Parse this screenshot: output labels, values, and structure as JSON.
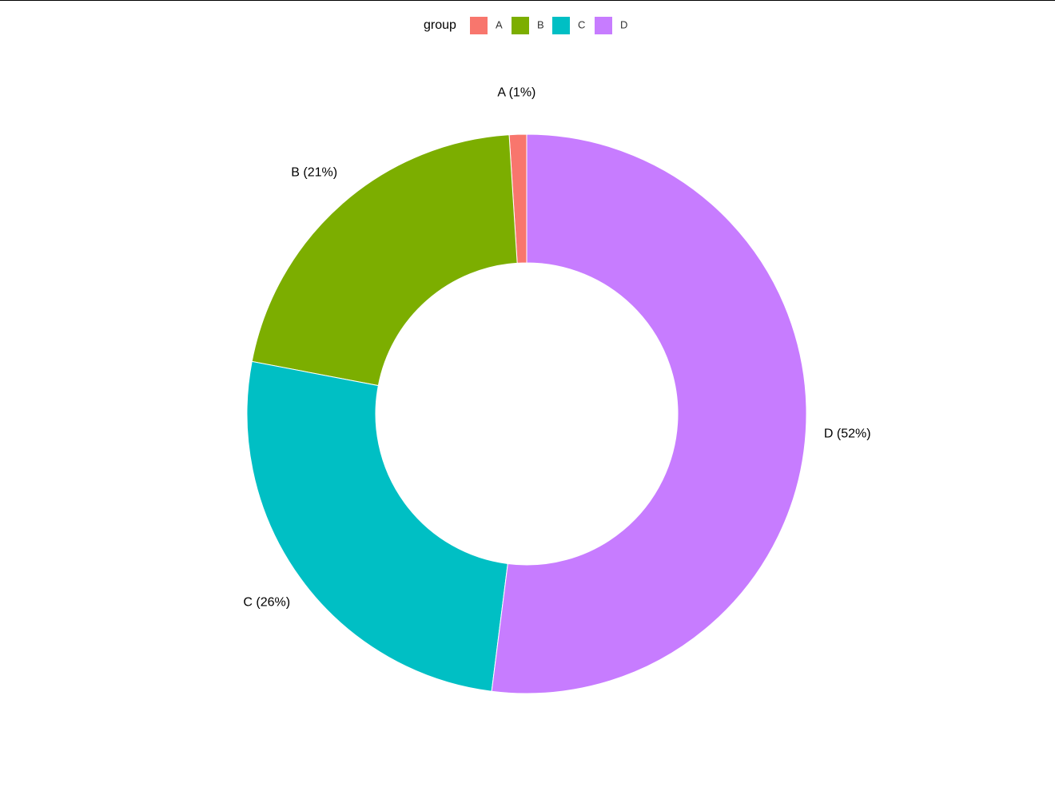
{
  "chart_data": {
    "type": "donut",
    "legend_title": "group",
    "categories": [
      "A",
      "B",
      "C",
      "D"
    ],
    "values": [
      1,
      21,
      26,
      52
    ],
    "value_labels": [
      "A (1%)",
      "B (21%)",
      "C (26%)",
      "D (52%)"
    ],
    "colors": [
      "#f8766d",
      "#7cae00",
      "#00bfc4",
      "#c77cff"
    ],
    "legend_position": "top"
  }
}
